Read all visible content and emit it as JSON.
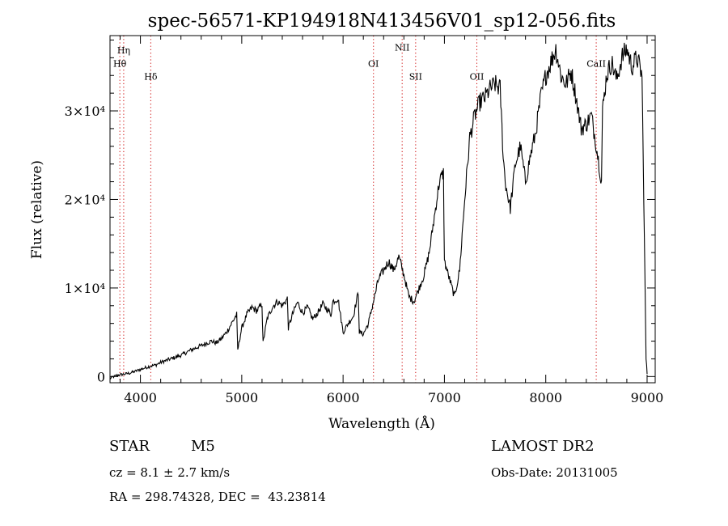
{
  "chart_data": {
    "type": "line",
    "title": "spec-56571-KP194918N413456V01_sp12-056.fits",
    "xlabel": "Wavelength (Å)",
    "ylabel": "Flux (relative)",
    "xlim": [
      3700,
      9080
    ],
    "ylim": [
      -700,
      38500
    ],
    "x_ticks": [
      {
        "value": 4000,
        "label": "4000"
      },
      {
        "value": 5000,
        "label": "5000"
      },
      {
        "value": 6000,
        "label": "6000"
      },
      {
        "value": 7000,
        "label": "7000"
      },
      {
        "value": 8000,
        "label": "8000"
      },
      {
        "value": 9000,
        "label": "9000"
      }
    ],
    "y_ticks": [
      {
        "value": 0,
        "label": "0"
      },
      {
        "value": 10000,
        "label": "1×10⁴"
      },
      {
        "value": 20000,
        "label": "2×10⁴"
      },
      {
        "value": 30000,
        "label": "3×10⁴"
      }
    ],
    "line_markers": [
      {
        "name": "Hη",
        "wavelength": 3835,
        "label_flux": 36500
      },
      {
        "name": "Hθ",
        "wavelength": 3797,
        "label_flux": 35000
      },
      {
        "name": "Hδ",
        "wavelength": 4102,
        "label_flux": 33500
      },
      {
        "name": "OI",
        "wavelength": 6300,
        "label_flux": 35000
      },
      {
        "name": "NII",
        "wavelength": 6583,
        "label_flux": 36800
      },
      {
        "name": "SII",
        "wavelength": 6716,
        "label_flux": 33500
      },
      {
        "name": "OII",
        "wavelength": 7320,
        "label_flux": 33500
      },
      {
        "name": "CaII",
        "wavelength": 8498,
        "label_flux": 35000
      }
    ],
    "series": [
      {
        "name": "flux",
        "x": [
          3700,
          3760,
          3800,
          3850,
          3900,
          3950,
          4000,
          4050,
          4100,
          4150,
          4200,
          4300,
          4400,
          4500,
          4600,
          4700,
          4750,
          4800,
          4850,
          4900,
          4950,
          4960,
          5000,
          5050,
          5100,
          5150,
          5200,
          5210,
          5250,
          5300,
          5350,
          5400,
          5450,
          5460,
          5500,
          5550,
          5600,
          5650,
          5700,
          5750,
          5800,
          5850,
          5880,
          5900,
          5950,
          6000,
          6050,
          6100,
          6150,
          6160,
          6200,
          6250,
          6300,
          6350,
          6400,
          6450,
          6500,
          6550,
          6600,
          6650,
          6700,
          6750,
          6800,
          6850,
          6900,
          6950,
          6990,
          7000,
          7050,
          7100,
          7150,
          7200,
          7250,
          7300,
          7350,
          7400,
          7450,
          7500,
          7550,
          7580,
          7600,
          7650,
          7700,
          7750,
          7800,
          7850,
          7900,
          7950,
          8000,
          8050,
          8100,
          8150,
          8200,
          8250,
          8300,
          8350,
          8400,
          8450,
          8500,
          8550,
          8560,
          8600,
          8650,
          8700,
          8750,
          8800,
          8850,
          8900,
          8950,
          8990,
          9000
        ],
        "values": [
          -200,
          100,
          200,
          300,
          400,
          600,
          800,
          1000,
          1200,
          1300,
          1600,
          2000,
          2400,
          3000,
          3500,
          4000,
          3800,
          4300,
          5000,
          6000,
          7000,
          3000,
          5500,
          7000,
          7800,
          7400,
          8200,
          3800,
          6500,
          7800,
          8500,
          8000,
          8800,
          5500,
          7000,
          8400,
          7200,
          7800,
          6500,
          7200,
          8200,
          7500,
          7000,
          8500,
          8800,
          5000,
          6000,
          6800,
          9500,
          5000,
          4800,
          6000,
          8500,
          11000,
          12000,
          13000,
          12000,
          13500,
          11500,
          9000,
          8500,
          10000,
          11500,
          14000,
          18000,
          22000,
          23000,
          13000,
          11000,
          9000,
          12000,
          20000,
          27000,
          29500,
          31000,
          31500,
          32500,
          33000,
          32500,
          25000,
          22000,
          19000,
          24000,
          26000,
          22000,
          25000,
          27500,
          31500,
          34000,
          35500,
          37000,
          34000,
          33000,
          34500,
          31500,
          28000,
          28500,
          29500,
          26000,
          22000,
          30000,
          34000,
          35500,
          33500,
          36000,
          37000,
          35000,
          36000,
          34000,
          2000,
          300
        ]
      }
    ]
  },
  "info": {
    "object_class": "STAR",
    "subclass": "M5",
    "survey": "LAMOST DR2",
    "cz": "cz = 8.1 ± 2.7 km/s",
    "obs_date": "Obs-Date: 20131005",
    "coords": "RA = 298.74328, DEC =  43.23814"
  }
}
